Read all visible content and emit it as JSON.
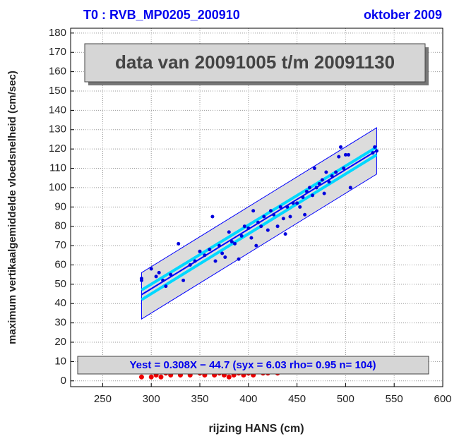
{
  "chart_data": {
    "type": "scatter",
    "title": "T0 : RVB_MP0205_200910",
    "title_right": "oktober 2009",
    "annotation": "data van 20091005 t/m 20091130",
    "equation": "Yest = 0.308X − 44.7 (syx = 6.03 rho= 0.95 n= 104)",
    "xlabel": "rijzing HANS (cm)",
    "ylabel": "maximum vertikaalgemiddelde vloedsnelheid (cm/sec)",
    "xlim": [
      217,
      600
    ],
    "ylim": [
      -3,
      182.5
    ],
    "xticks": [
      250,
      300,
      350,
      400,
      450,
      500,
      550,
      600
    ],
    "yticks": [
      0,
      10,
      20,
      30,
      40,
      50,
      60,
      70,
      80,
      90,
      100,
      110,
      120,
      130,
      140,
      150,
      160,
      170,
      180
    ],
    "grid": true,
    "prediction_band": {
      "color": "#dcdcdc",
      "x": [
        290,
        532
      ],
      "lower": [
        32,
        107
      ],
      "upper": [
        56,
        131
      ]
    },
    "confidence_band": {
      "color": "#00d8ff",
      "x": [
        290,
        532
      ],
      "lower": [
        42,
        117
      ],
      "upper": [
        47,
        121
      ]
    },
    "fit": {
      "color": "#0000ff",
      "x": [
        290,
        532
      ],
      "y": [
        44.6,
        119.2
      ]
    },
    "series": [
      {
        "color": "#0000dd",
        "x": [
          290,
          290,
          300,
          305,
          308,
          312,
          315,
          320,
          328,
          333,
          340,
          345,
          350,
          355,
          360,
          363,
          366,
          370,
          373,
          376,
          380,
          383,
          386,
          390,
          393,
          396,
          400,
          403,
          405,
          408,
          410,
          413,
          416,
          420,
          423,
          426,
          430,
          433,
          436,
          438,
          440,
          443,
          446,
          450,
          453,
          456,
          458,
          460,
          463,
          466,
          468,
          470,
          473,
          476,
          478,
          480,
          483,
          486,
          490,
          493,
          495,
          498,
          500,
          503,
          505,
          528,
          530,
          532
        ],
        "values": [
          52,
          53,
          58,
          54,
          56,
          52,
          49,
          55,
          71,
          52,
          60,
          62,
          67,
          65,
          68,
          85,
          62,
          70,
          66,
          64,
          77,
          72,
          71,
          63,
          75,
          80,
          79,
          74,
          88,
          70,
          82,
          80,
          85,
          78,
          88,
          86,
          80,
          90,
          84,
          76,
          90,
          85,
          92,
          92,
          90,
          95,
          86,
          98,
          100,
          96,
          110,
          100,
          102,
          104,
          97,
          108,
          103,
          106,
          108,
          116,
          121,
          110,
          117,
          117,
          100,
          118,
          121,
          119
        ]
      },
      {
        "color": "#ee0000",
        "x": [
          290,
          300,
          305,
          310,
          315,
          320,
          330,
          340,
          350,
          355,
          360,
          365,
          370,
          375,
          380,
          385,
          390,
          395,
          400,
          405,
          410,
          415,
          420,
          425,
          430,
          435,
          440,
          445,
          450,
          455,
          460,
          465,
          470,
          475,
          480,
          485,
          490,
          495,
          500,
          505,
          510,
          525,
          530
        ],
        "values": [
          2,
          2,
          3,
          2,
          4,
          3,
          3,
          3,
          4,
          3,
          5,
          3,
          4,
          3,
          2,
          3,
          4,
          3,
          4,
          3,
          5,
          4,
          4,
          5,
          4,
          5,
          6,
          5,
          6,
          5,
          5,
          6,
          6,
          5,
          7,
          6,
          7,
          6,
          6,
          5,
          6,
          6,
          7
        ]
      }
    ]
  }
}
